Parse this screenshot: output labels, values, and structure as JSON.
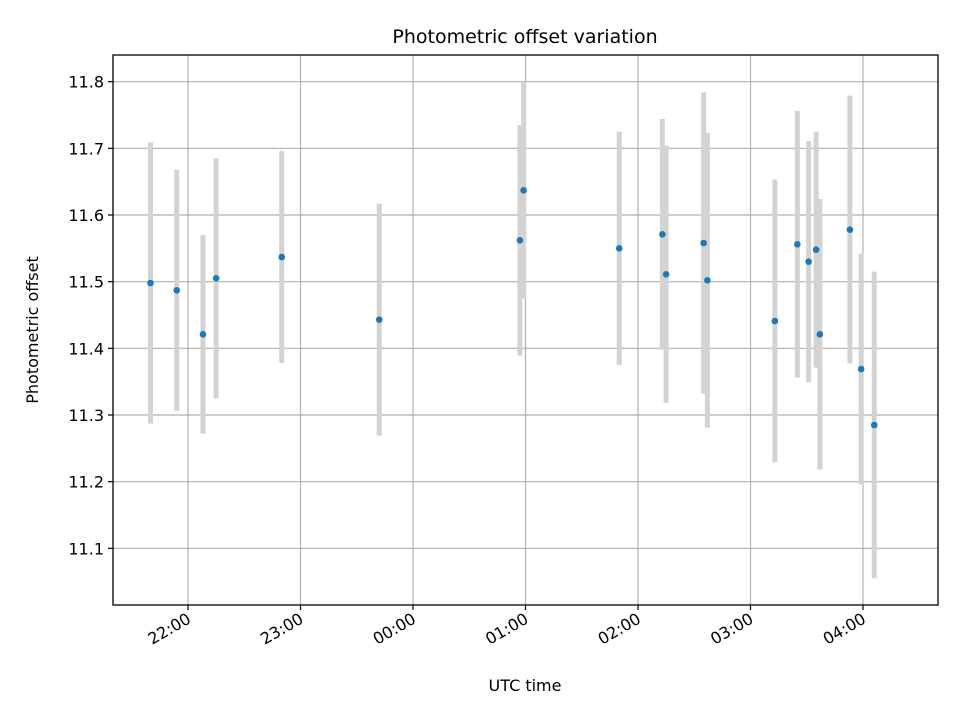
{
  "chart_data": {
    "type": "scatter",
    "title": "Photometric offset variation",
    "xlabel": "UTC time",
    "ylabel": "Photometric offset",
    "x_axis": "time",
    "xlim": [
      "21:20",
      "04:40"
    ],
    "ylim": [
      11.015,
      11.84
    ],
    "xticks": [
      {
        "label": "22:00",
        "minutes": 1320
      },
      {
        "label": "23:00",
        "minutes": 1380
      },
      {
        "label": "00:00",
        "minutes": 1440
      },
      {
        "label": "01:00",
        "minutes": 1500
      },
      {
        "label": "02:00",
        "minutes": 1560
      },
      {
        "label": "03:00",
        "minutes": 1620
      },
      {
        "label": "04:00",
        "minutes": 1680
      }
    ],
    "yticks": [
      "11.1",
      "11.2",
      "11.3",
      "11.4",
      "11.5",
      "11.6",
      "11.7",
      "11.8"
    ],
    "grid": true,
    "legend": "none",
    "colors": {
      "point": "#1f77b4",
      "errorbar": "#d3d3d3",
      "grid": "#b0b0b0"
    },
    "series": [
      {
        "points": [
          {
            "time": "21:40",
            "y": 11.498,
            "err": 0.211
          },
          {
            "time": "21:54",
            "y": 11.487,
            "err": 0.181
          },
          {
            "time": "22:08",
            "y": 11.421,
            "err": 0.149
          },
          {
            "time": "22:15",
            "y": 11.505,
            "err": 0.18
          },
          {
            "time": "22:50",
            "y": 11.537,
            "err": 0.159
          },
          {
            "time": "23:42",
            "y": 11.443,
            "err": 0.174
          },
          {
            "time": "00:57",
            "y": 11.562,
            "err": 0.173
          },
          {
            "time": "00:59",
            "y": 11.637,
            "err": 0.163
          },
          {
            "time": "01:50",
            "y": 11.55,
            "err": 0.175
          },
          {
            "time": "02:13",
            "y": 11.571,
            "err": 0.173
          },
          {
            "time": "02:15",
            "y": 11.511,
            "err": 0.193
          },
          {
            "time": "02:35",
            "y": 11.558,
            "err": 0.226
          },
          {
            "time": "02:37",
            "y": 11.502,
            "err": 0.221
          },
          {
            "time": "03:13",
            "y": 11.441,
            "err": 0.212
          },
          {
            "time": "03:25",
            "y": 11.556,
            "err": 0.2
          },
          {
            "time": "03:31",
            "y": 11.53,
            "err": 0.181
          },
          {
            "time": "03:35",
            "y": 11.548,
            "err": 0.177
          },
          {
            "time": "03:37",
            "y": 11.421,
            "err": 0.203
          },
          {
            "time": "03:53",
            "y": 11.578,
            "err": 0.201
          },
          {
            "time": "03:59",
            "y": 11.369,
            "err": 0.173
          },
          {
            "time": "04:06",
            "y": 11.285,
            "err": 0.23
          }
        ]
      }
    ]
  }
}
